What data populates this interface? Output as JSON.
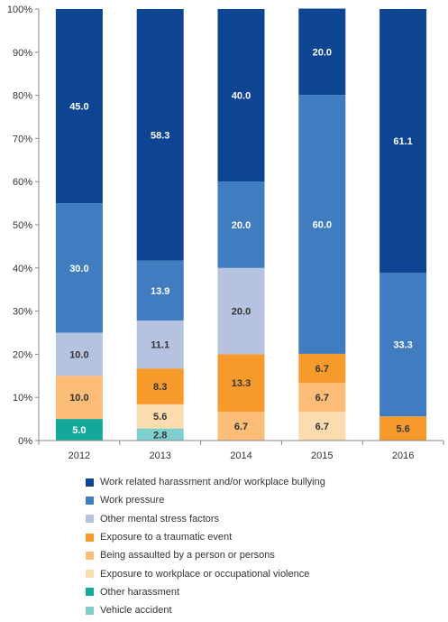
{
  "chart_data": {
    "type": "bar",
    "stacked": true,
    "percent": true,
    "categories": [
      "2012",
      "2013",
      "2014",
      "2015",
      "2016"
    ],
    "y_ticks": [
      "0%",
      "10%",
      "20%",
      "30%",
      "40%",
      "50%",
      "60%",
      "70%",
      "80%",
      "90%",
      "100%"
    ],
    "ylim": [
      0,
      100
    ],
    "grid": false,
    "legend_position": "bottom",
    "series": [
      {
        "name": "Vehicle accident",
        "color": "#7fcfcf",
        "label_color": "#333333",
        "values": [
          0,
          2.8,
          0,
          0,
          0
        ]
      },
      {
        "name": "Other harassment",
        "color": "#14a89b",
        "label_color": "#ffffff",
        "values": [
          5.0,
          0,
          0,
          0,
          0
        ]
      },
      {
        "name": "Exposure to workplace or occupational violence",
        "color": "#fbdcae",
        "label_color": "#333333",
        "values": [
          0,
          5.6,
          0,
          6.7,
          0
        ]
      },
      {
        "name": "Being assaulted by a person or persons",
        "color": "#fbbd77",
        "label_color": "#333333",
        "values": [
          10.0,
          0,
          6.7,
          6.7,
          0
        ]
      },
      {
        "name": "Exposure to a traumatic event",
        "color": "#f79a2c",
        "label_color": "#333333",
        "values": [
          0,
          8.3,
          13.3,
          6.7,
          5.6
        ]
      },
      {
        "name": "Other mental stress factors",
        "color": "#b5c3e1",
        "label_color": "#333333",
        "values": [
          10.0,
          11.1,
          20.0,
          0,
          0
        ]
      },
      {
        "name": "Work pressure",
        "color": "#3f7cc0",
        "label_color": "#ffffff",
        "values": [
          30.0,
          13.9,
          20.0,
          60.0,
          33.3
        ]
      },
      {
        "name": "Work related harassment and/or workplace bullying",
        "color": "#0d4593",
        "label_color": "#ffffff",
        "values": [
          45.0,
          58.3,
          40.0,
          20.0,
          61.1
        ]
      }
    ],
    "legend_order": [
      "Work related harassment and/or workplace bullying",
      "Work pressure",
      "Other mental stress factors",
      "Exposure to a traumatic event",
      "Being assaulted by a person or persons",
      "Exposure to workplace or occupational violence",
      "Other harassment",
      "Vehicle accident"
    ]
  }
}
